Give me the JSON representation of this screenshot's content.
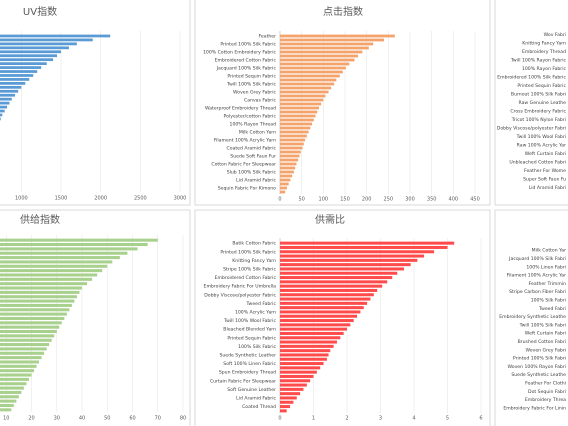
{
  "chart_data": [
    {
      "type": "bar",
      "title": "UV指数",
      "color": "#5b9bd5",
      "values": [
        2120,
        1900,
        1700,
        1600,
        1500,
        1450,
        1400,
        1320,
        1250,
        1200,
        1150,
        1100,
        1050,
        1000,
        960,
        920,
        880,
        850,
        820,
        790,
        760,
        740,
        720,
        700,
        680,
        660,
        640,
        620,
        600,
        580,
        560,
        540,
        520,
        500,
        480,
        460,
        440,
        420,
        400,
        380
      ],
      "xlim": [
        0,
        3000
      ],
      "xticks": [
        1000,
        1500,
        2000,
        2500,
        3000
      ],
      "grid": true
    },
    {
      "type": "bar",
      "title": "点击指数",
      "color": "#f4a46b",
      "categories": [
        "Feather",
        null,
        "Printed 100% Silk Fabric",
        null,
        "100% Cotton Embroidery Fabric",
        null,
        "Embroidered Cotton Fabric",
        null,
        "Jacquard 100% Silk Fabric",
        null,
        "Printed Sequin Fabric",
        null,
        "Twill 100% Silk Fabric",
        null,
        "Woven Grey Fabric",
        null,
        "Canvas Fabric",
        null,
        "Waterproof Embroidery Thread",
        null,
        "Polyester/cotton Fabric",
        null,
        "100% Rayon Thread",
        null,
        "Milk Cotton Yarn",
        null,
        "Filament 100% Acrylic Yarn",
        null,
        "Coated Aramid Fabric",
        null,
        "Suede Soft Faux Fur",
        null,
        "Cotton Fabric For Sleepwear",
        null,
        "Slub 100% Silk Fabric",
        null,
        "Lid Aramid Fabric",
        null,
        "Sequin Fabric For Kimono",
        null
      ],
      "values": [
        265,
        240,
        215,
        205,
        190,
        180,
        172,
        160,
        152,
        145,
        138,
        130,
        125,
        118,
        112,
        105,
        100,
        95,
        90,
        86,
        82,
        78,
        74,
        70,
        66,
        62,
        58,
        55,
        52,
        48,
        45,
        42,
        38,
        35,
        32,
        28,
        24,
        20,
        16,
        12
      ],
      "xlim": [
        0,
        450
      ],
      "xticks": [
        0,
        50,
        100,
        150,
        200,
        250,
        300,
        350,
        400,
        450
      ],
      "grid": true
    },
    {
      "type": "bar",
      "categories": [
        "Wov Fabri",
        "Knitting Fancy Yarn",
        "Embroidery Thread",
        "Twill 100% Rayon Fabric",
        "100% Rayon Fabric",
        "Embroidered 100% Silk Fabric",
        "Printed Sequin Fabric",
        "Burnout 100% Silk Fabri",
        "Raw Genuine Leathe",
        "Cross Embroidery Fabric",
        "Tricot 100% Nylon Fabri",
        "Dobby Viscose/polyester Fabri",
        "Twill 100% Wool Fabri",
        "Raw 100% Acrylic Yar",
        "Weft Curtain Fabri",
        "Unbleached Cotton Fabri",
        "Feather For Wome",
        "Super Soft Faux Fu",
        "Lid Aramid Fabri"
      ]
    },
    {
      "type": "bar",
      "title": "供给指数",
      "color": "#a9d18e",
      "values": [
        70,
        66,
        62,
        58,
        55,
        52,
        50,
        48,
        46,
        44,
        42,
        40,
        39,
        38,
        37,
        36,
        35,
        34,
        33,
        32,
        31,
        30,
        29,
        28,
        27,
        26,
        25,
        24,
        23,
        22,
        21,
        20,
        19,
        18,
        17,
        16,
        15,
        14,
        13,
        12
      ],
      "xlim": [
        0,
        80
      ],
      "xticks": [
        10,
        20,
        30,
        40,
        50,
        60,
        70,
        80
      ],
      "grid": true
    },
    {
      "type": "bar",
      "title": "供需比",
      "color": "#ff4b4b",
      "categories": [
        "Batik Cotton Fabric",
        null,
        "Printed 100% Silk Fabric",
        null,
        "Knitting Fancy Yarn",
        null,
        "Stripe 100% Silk Fabric",
        null,
        "Embroidered Cotton Fabric",
        null,
        "Embroidery Fabric For Umbrella",
        null,
        "Dobby Viscose/polyester Fabric",
        null,
        "Tweed Fabric",
        null,
        "100% Acrylic Yarn",
        null,
        "Twill 100% Wool Fabric",
        null,
        "Bleached Blended Yarn",
        null,
        "Printed Sequin Fabric",
        null,
        "100% Silk Fabric",
        null,
        "Suede Synthetic Leather",
        null,
        "Soft 100% Linen Fabric",
        null,
        "Spun Embroidery Thread",
        null,
        "Curtain Fabric For Sleepwear",
        null,
        "Soft Genuine Leather",
        null,
        "Lid Aramid Fabric",
        null,
        "Coated Thread",
        null
      ],
      "values": [
        5.2,
        5.0,
        4.6,
        4.3,
        4.1,
        3.9,
        3.7,
        3.5,
        3.35,
        3.2,
        3.05,
        2.9,
        2.8,
        2.7,
        2.6,
        2.5,
        2.4,
        2.3,
        2.2,
        2.1,
        2.0,
        1.9,
        1.8,
        1.7,
        1.6,
        1.5,
        1.45,
        1.4,
        1.3,
        1.2,
        1.1,
        1.0,
        0.9,
        0.8,
        0.7,
        0.6,
        0.5,
        0.4,
        0.3,
        0.2
      ],
      "xlim": [
        0,
        6
      ],
      "xticks": [
        0,
        1,
        2,
        3,
        4,
        5,
        6
      ],
      "grid": true
    },
    {
      "type": "bar",
      "categories": [
        "Milk Cotton Yar",
        "Jacquard 100% Silk Fabri",
        "100% Linen Fabri",
        "Filament 100% Acrylic Yar",
        "Feather Trimmin",
        "Stripe Carbon Fiber Fabri",
        "100% Silk Fabri",
        "Tweed Fabri",
        "Embroidery Synthetic Leathe",
        "Twill 100% Silk Fabri",
        "Weft Curtain Fabri",
        "Brushed Cotton Fabri",
        "Woven Grey Fabri",
        "Printed 100% Silk Fabri",
        "Woven 100% Rayon Fabri",
        "Suede Synthetic Leathe",
        "Feather For Clothi",
        "Dot Sequin Fabri",
        "Embroidery Threa",
        "Embroidery Fabric For Linin"
      ]
    }
  ]
}
